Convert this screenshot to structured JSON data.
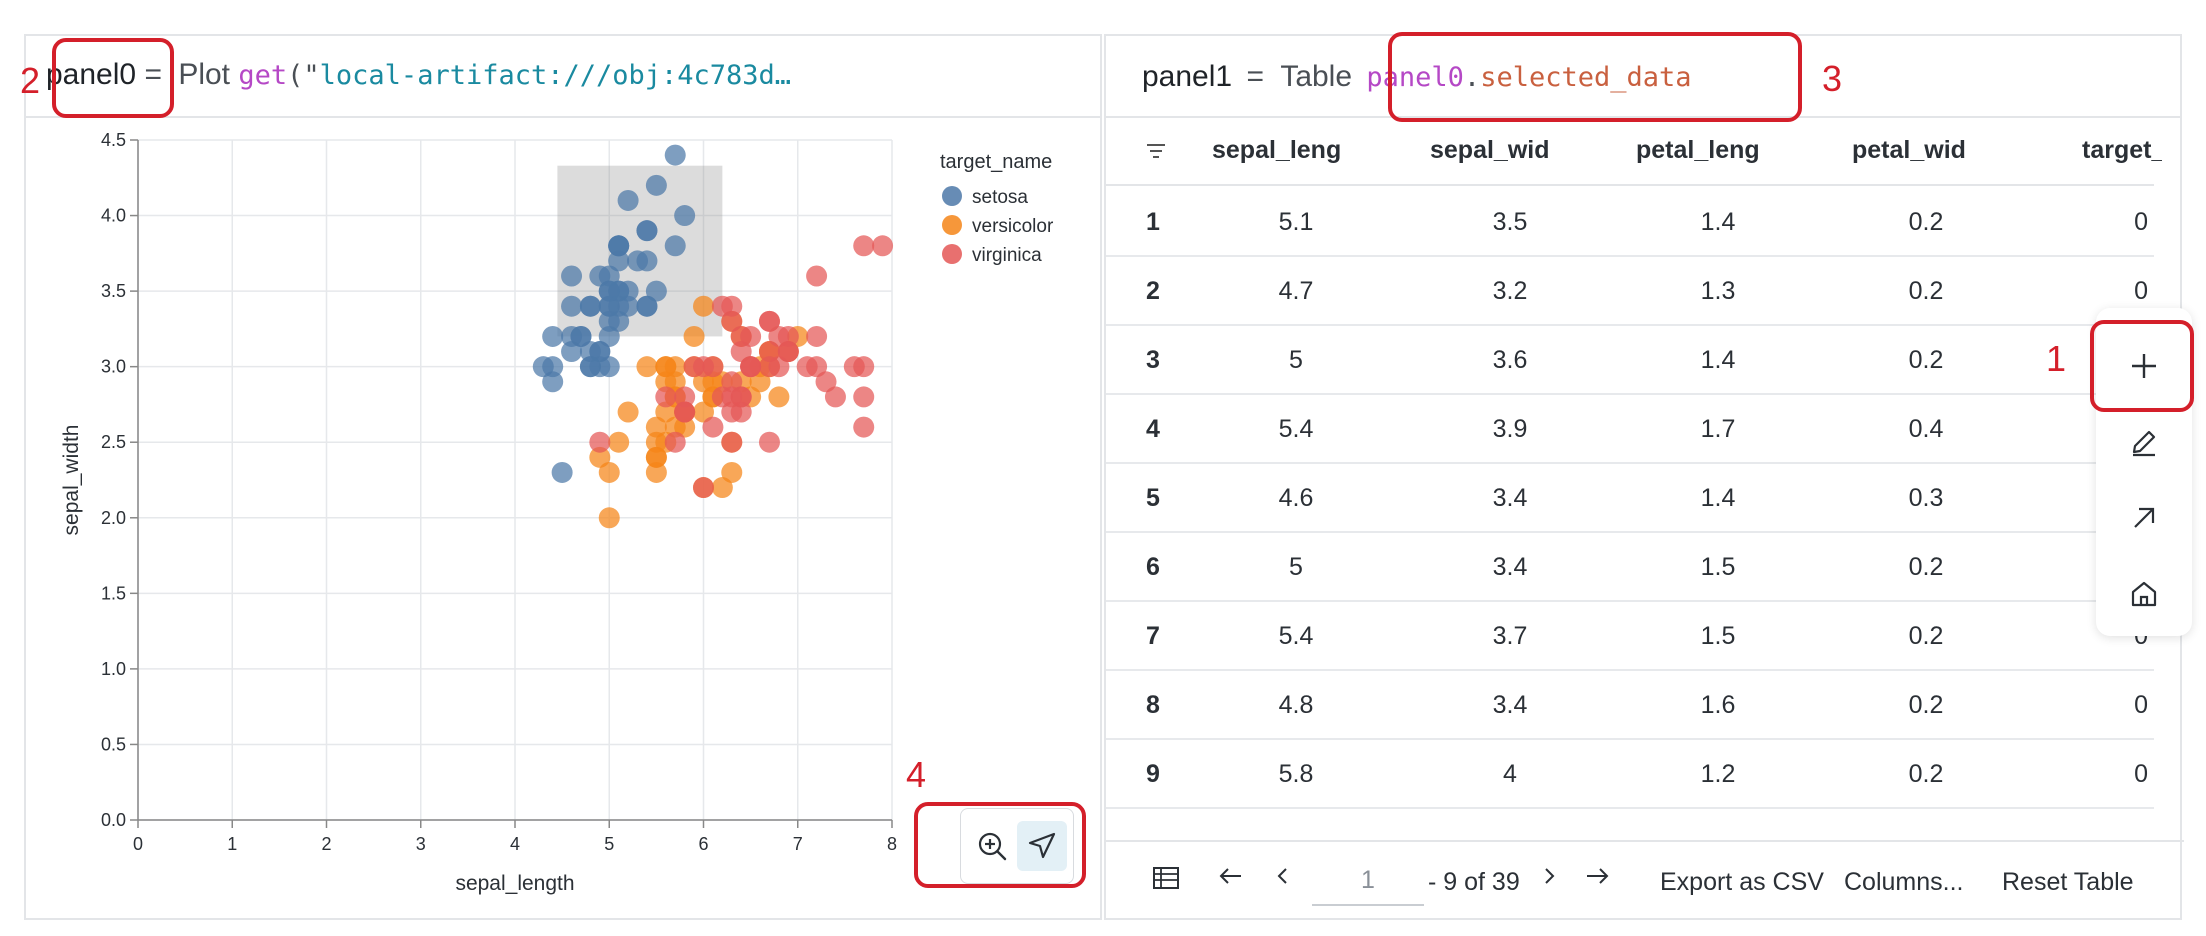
{
  "left_panel": {
    "var_name": "panel0",
    "equals": "=",
    "type_label": "Plot",
    "fn_name": "get",
    "arg_open": "(\"",
    "arg_value": "local-artifact:///obj:4c783d…"
  },
  "right_panel": {
    "var_name": "panel1",
    "equals": "=",
    "type_label": "Table",
    "ref_var": "panel0",
    "ref_dot": ".",
    "ref_attr": "selected_data"
  },
  "annotations": [
    "1",
    "2",
    "3",
    "4"
  ],
  "chart_data": {
    "type": "scatter",
    "xlabel": "sepal_length",
    "ylabel": "sepal_width",
    "xlim": [
      0,
      8
    ],
    "ylim": [
      0,
      4.5
    ],
    "x_ticks": [
      "0",
      "1",
      "2",
      "3",
      "4",
      "5",
      "6",
      "7",
      "8"
    ],
    "y_ticks": [
      "0.0",
      "0.5",
      "1.0",
      "1.5",
      "2.0",
      "2.5",
      "3.0",
      "3.5",
      "4.0",
      "4.5"
    ],
    "grid": true,
    "legend_title": "target_name",
    "legend_position": "top-right",
    "selection_brush": {
      "x": [
        4.45,
        6.2
      ],
      "y": [
        3.2,
        4.33
      ]
    },
    "series": [
      {
        "name": "setosa",
        "color": "#4c78a8",
        "points": [
          [
            5.1,
            3.5
          ],
          [
            4.9,
            3.0
          ],
          [
            4.7,
            3.2
          ],
          [
            4.6,
            3.1
          ],
          [
            5.0,
            3.6
          ],
          [
            5.4,
            3.9
          ],
          [
            4.6,
            3.4
          ],
          [
            5.0,
            3.4
          ],
          [
            4.4,
            2.9
          ],
          [
            4.9,
            3.1
          ],
          [
            5.4,
            3.7
          ],
          [
            4.8,
            3.4
          ],
          [
            4.8,
            3.0
          ],
          [
            4.3,
            3.0
          ],
          [
            5.8,
            4.0
          ],
          [
            5.7,
            4.4
          ],
          [
            5.4,
            3.9
          ],
          [
            5.1,
            3.5
          ],
          [
            5.7,
            3.8
          ],
          [
            5.1,
            3.8
          ],
          [
            5.4,
            3.4
          ],
          [
            5.1,
            3.7
          ],
          [
            4.6,
            3.6
          ],
          [
            5.1,
            3.3
          ],
          [
            4.8,
            3.4
          ],
          [
            5.0,
            3.0
          ],
          [
            5.0,
            3.4
          ],
          [
            5.2,
            3.5
          ],
          [
            5.2,
            3.4
          ],
          [
            4.7,
            3.2
          ],
          [
            4.8,
            3.1
          ],
          [
            5.4,
            3.4
          ],
          [
            5.2,
            4.1
          ],
          [
            5.5,
            4.2
          ],
          [
            4.9,
            3.1
          ],
          [
            5.0,
            3.2
          ],
          [
            5.5,
            3.5
          ],
          [
            4.9,
            3.6
          ],
          [
            4.4,
            3.0
          ],
          [
            5.1,
            3.4
          ],
          [
            5.0,
            3.5
          ],
          [
            4.5,
            2.3
          ],
          [
            4.4,
            3.2
          ],
          [
            5.0,
            3.5
          ],
          [
            5.1,
            3.8
          ],
          [
            4.8,
            3.0
          ],
          [
            5.1,
            3.8
          ],
          [
            4.6,
            3.2
          ],
          [
            5.3,
            3.7
          ],
          [
            5.0,
            3.3
          ]
        ]
      },
      {
        "name": "versicolor",
        "color": "#f58518",
        "points": [
          [
            7.0,
            3.2
          ],
          [
            6.4,
            3.2
          ],
          [
            6.9,
            3.1
          ],
          [
            5.5,
            2.3
          ],
          [
            6.5,
            2.8
          ],
          [
            5.7,
            2.8
          ],
          [
            6.3,
            3.3
          ],
          [
            4.9,
            2.4
          ],
          [
            6.6,
            2.9
          ],
          [
            5.2,
            2.7
          ],
          [
            5.0,
            2.0
          ],
          [
            5.9,
            3.0
          ],
          [
            6.0,
            2.2
          ],
          [
            6.1,
            2.9
          ],
          [
            5.6,
            2.9
          ],
          [
            6.7,
            3.1
          ],
          [
            5.6,
            3.0
          ],
          [
            5.8,
            2.7
          ],
          [
            6.2,
            2.2
          ],
          [
            5.6,
            2.5
          ],
          [
            5.9,
            3.2
          ],
          [
            6.1,
            2.8
          ],
          [
            6.3,
            2.5
          ],
          [
            6.1,
            2.8
          ],
          [
            6.4,
            2.9
          ],
          [
            6.6,
            3.0
          ],
          [
            6.8,
            2.8
          ],
          [
            6.7,
            3.0
          ],
          [
            6.0,
            2.9
          ],
          [
            5.7,
            2.6
          ],
          [
            5.5,
            2.4
          ],
          [
            5.5,
            2.4
          ],
          [
            5.8,
            2.7
          ],
          [
            6.0,
            2.7
          ],
          [
            5.4,
            3.0
          ],
          [
            6.0,
            3.4
          ],
          [
            6.7,
            3.1
          ],
          [
            6.3,
            2.3
          ],
          [
            5.6,
            3.0
          ],
          [
            5.5,
            2.5
          ],
          [
            5.5,
            2.6
          ],
          [
            6.1,
            3.0
          ],
          [
            5.8,
            2.6
          ],
          [
            5.0,
            2.3
          ],
          [
            5.6,
            2.7
          ],
          [
            5.7,
            3.0
          ],
          [
            5.7,
            2.9
          ],
          [
            6.2,
            2.9
          ],
          [
            5.1,
            2.5
          ],
          [
            5.7,
            2.8
          ]
        ]
      },
      {
        "name": "virginica",
        "color": "#e45756",
        "points": [
          [
            6.3,
            3.3
          ],
          [
            5.8,
            2.7
          ],
          [
            7.1,
            3.0
          ],
          [
            6.3,
            2.9
          ],
          [
            6.5,
            3.0
          ],
          [
            7.6,
            3.0
          ],
          [
            4.9,
            2.5
          ],
          [
            7.3,
            2.9
          ],
          [
            6.7,
            2.5
          ],
          [
            7.2,
            3.6
          ],
          [
            6.5,
            3.2
          ],
          [
            6.4,
            2.7
          ],
          [
            6.8,
            3.0
          ],
          [
            5.7,
            2.5
          ],
          [
            5.8,
            2.8
          ],
          [
            6.4,
            3.2
          ],
          [
            6.5,
            3.0
          ],
          [
            7.7,
            3.8
          ],
          [
            7.7,
            2.6
          ],
          [
            6.0,
            2.2
          ],
          [
            6.9,
            3.2
          ],
          [
            5.6,
            2.8
          ],
          [
            7.7,
            2.8
          ],
          [
            6.3,
            2.7
          ],
          [
            6.7,
            3.3
          ],
          [
            7.2,
            3.2
          ],
          [
            6.2,
            2.8
          ],
          [
            6.1,
            3.0
          ],
          [
            6.4,
            2.8
          ],
          [
            7.2,
            3.0
          ],
          [
            7.4,
            2.8
          ],
          [
            7.9,
            3.8
          ],
          [
            6.4,
            2.8
          ],
          [
            6.3,
            2.8
          ],
          [
            6.1,
            2.6
          ],
          [
            7.7,
            3.0
          ],
          [
            6.3,
            3.4
          ],
          [
            6.4,
            3.1
          ],
          [
            6.0,
            3.0
          ],
          [
            6.9,
            3.1
          ],
          [
            6.7,
            3.1
          ],
          [
            6.9,
            3.1
          ],
          [
            5.8,
            2.7
          ],
          [
            6.8,
            3.2
          ],
          [
            6.7,
            3.3
          ],
          [
            6.7,
            3.0
          ],
          [
            6.3,
            2.5
          ],
          [
            6.5,
            3.0
          ],
          [
            6.2,
            3.4
          ],
          [
            5.9,
            3.0
          ]
        ]
      }
    ]
  },
  "table": {
    "columns": [
      "sepal_leng",
      "sepal_wid",
      "petal_leng",
      "petal_wid",
      "target_"
    ],
    "rows": [
      {
        "idx": "1",
        "cells": [
          "5.1",
          "3.5",
          "1.4",
          "0.2",
          "0"
        ]
      },
      {
        "idx": "2",
        "cells": [
          "4.7",
          "3.2",
          "1.3",
          "0.2",
          "0"
        ]
      },
      {
        "idx": "3",
        "cells": [
          "5",
          "3.6",
          "1.4",
          "0.2",
          "0"
        ]
      },
      {
        "idx": "4",
        "cells": [
          "5.4",
          "3.9",
          "1.7",
          "0.4",
          "0"
        ]
      },
      {
        "idx": "5",
        "cells": [
          "4.6",
          "3.4",
          "1.4",
          "0.3",
          "0"
        ]
      },
      {
        "idx": "6",
        "cells": [
          "5",
          "3.4",
          "1.5",
          "0.2",
          "0"
        ]
      },
      {
        "idx": "7",
        "cells": [
          "5.4",
          "3.7",
          "1.5",
          "0.2",
          "0"
        ]
      },
      {
        "idx": "8",
        "cells": [
          "4.8",
          "3.4",
          "1.6",
          "0.2",
          "0"
        ]
      },
      {
        "idx": "9",
        "cells": [
          "5.8",
          "4",
          "1.2",
          "0.2",
          "0"
        ]
      }
    ],
    "footer": {
      "page_value": "1",
      "range_text": "- 9 of 39",
      "export_label": "Export as CSV",
      "columns_label": "Columns...",
      "reset_label": "Reset Table"
    }
  },
  "colors": {
    "annotation": "#d41f2a",
    "border": "#e3e5e8"
  }
}
